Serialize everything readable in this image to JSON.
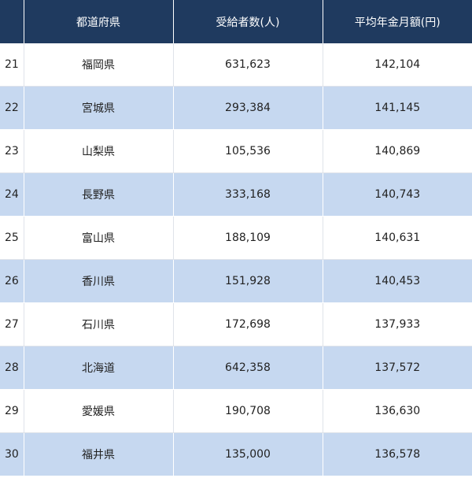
{
  "table": {
    "headers": [
      "",
      "都道府県",
      "受給者数(人)",
      "平均年金月額(円)"
    ],
    "rows": [
      {
        "rank": "21",
        "prefecture": "福岡県",
        "recipients": "631,623",
        "average": "142,104"
      },
      {
        "rank": "22",
        "prefecture": "宮城県",
        "recipients": "293,384",
        "average": "141,145"
      },
      {
        "rank": "23",
        "prefecture": "山梨県",
        "recipients": "105,536",
        "average": "140,869"
      },
      {
        "rank": "24",
        "prefecture": "長野県",
        "recipients": "333,168",
        "average": "140,743"
      },
      {
        "rank": "25",
        "prefecture": "富山県",
        "recipients": "188,109",
        "average": "140,631"
      },
      {
        "rank": "26",
        "prefecture": "香川県",
        "recipients": "151,928",
        "average": "140,453"
      },
      {
        "rank": "27",
        "prefecture": "石川県",
        "recipients": "172,698",
        "average": "137,933"
      },
      {
        "rank": "28",
        "prefecture": "北海道",
        "recipients": "642,358",
        "average": "137,572"
      },
      {
        "rank": "29",
        "prefecture": "愛媛県",
        "recipients": "190,708",
        "average": "136,630"
      },
      {
        "rank": "30",
        "prefecture": "福井県",
        "recipients": "135,000",
        "average": "136,578"
      }
    ]
  },
  "colors": {
    "header_bg": "#1f3a5f",
    "row_alt_bg": "#c6d8f0",
    "row_bg": "#ffffff"
  }
}
